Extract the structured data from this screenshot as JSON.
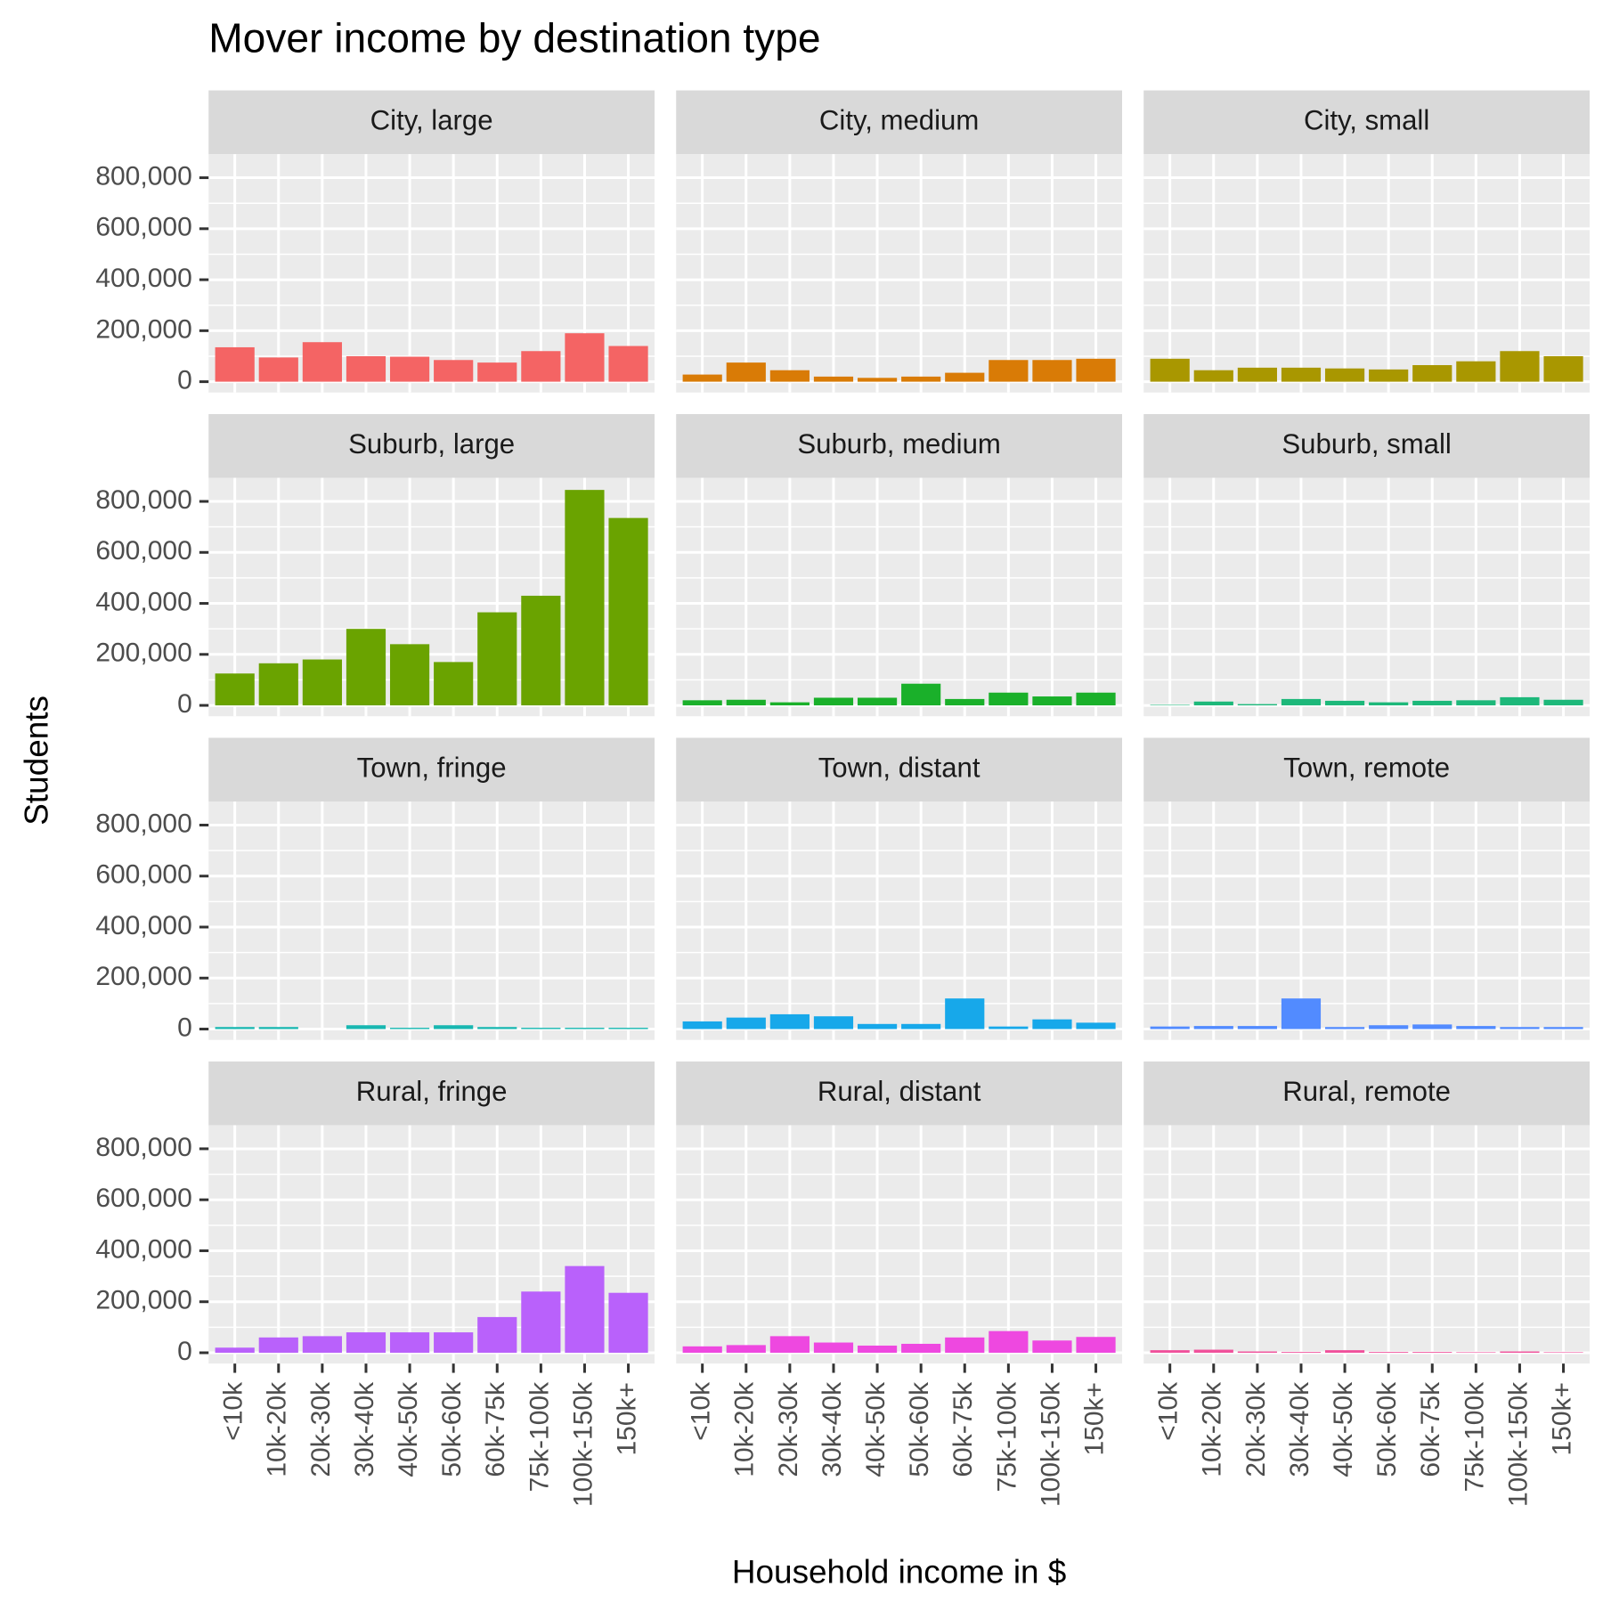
{
  "chart_data": {
    "type": "bar",
    "title": "Mover income by destination type",
    "x_label": "Household income in $",
    "y_label": "Students",
    "categories": [
      "<10k",
      "10k-20k",
      "20k-30k",
      "30k-40k",
      "40k-50k",
      "50k-60k",
      "60k-75k",
      "75k-100k",
      "100k-150k",
      "150k+"
    ],
    "ylim": [
      -42500,
      892500
    ],
    "yticks": [
      0,
      {
        "value": 200000,
        "label": "200,000"
      },
      {
        "value": 400000,
        "label": "400,000"
      },
      {
        "value": 600000,
        "label": "600,000"
      },
      {
        "value": 800000,
        "label": "800,000"
      }
    ],
    "grid": true,
    "series": [
      {
        "name": "City, large",
        "color": "#f46464",
        "values": [
          135000,
          95000,
          155000,
          100000,
          98000,
          85000,
          75000,
          120000,
          190000,
          140000
        ]
      },
      {
        "name": "City, medium",
        "color": "#d97b06",
        "values": [
          28000,
          75000,
          45000,
          20000,
          15000,
          20000,
          35000,
          85000,
          85000,
          90000
        ]
      },
      {
        "name": "City, small",
        "color": "#a99700",
        "values": [
          90000,
          45000,
          55000,
          55000,
          52000,
          48000,
          65000,
          80000,
          120000,
          100000
        ]
      },
      {
        "name": "Suburb, large",
        "color": "#6aa300",
        "values": [
          125000,
          165000,
          180000,
          300000,
          240000,
          170000,
          365000,
          430000,
          845000,
          735000
        ]
      },
      {
        "name": "Suburb, medium",
        "color": "#1ab02a",
        "values": [
          20000,
          22000,
          12000,
          30000,
          30000,
          85000,
          25000,
          50000,
          35000,
          50000
        ]
      },
      {
        "name": "Suburb, small",
        "color": "#1db87a",
        "values": [
          2000,
          15000,
          5000,
          25000,
          18000,
          12000,
          18000,
          20000,
          32000,
          22000
        ]
      },
      {
        "name": "Town, fringe",
        "color": "#18b7b1",
        "values": [
          8000,
          8000,
          0,
          15000,
          5000,
          15000,
          8000,
          5000,
          5000,
          5000
        ]
      },
      {
        "name": "Town, distant",
        "color": "#17a8ea",
        "values": [
          30000,
          45000,
          58000,
          50000,
          20000,
          20000,
          120000,
          10000,
          38000,
          25000
        ]
      },
      {
        "name": "Town, remote",
        "color": "#528bff",
        "values": [
          10000,
          12000,
          12000,
          120000,
          8000,
          15000,
          18000,
          12000,
          8000,
          8000
        ]
      },
      {
        "name": "Rural, fringe",
        "color": "#b961fb",
        "values": [
          20000,
          60000,
          65000,
          80000,
          80000,
          80000,
          140000,
          240000,
          340000,
          235000
        ]
      },
      {
        "name": "Rural, distant",
        "color": "#ee48e0",
        "values": [
          25000,
          30000,
          65000,
          40000,
          28000,
          35000,
          60000,
          85000,
          48000,
          62000
        ]
      },
      {
        "name": "Rural, remote",
        "color": "#f0509b",
        "values": [
          10000,
          12000,
          5000,
          3000,
          10000,
          3000,
          3000,
          2000,
          5000,
          2000
        ]
      }
    ]
  }
}
